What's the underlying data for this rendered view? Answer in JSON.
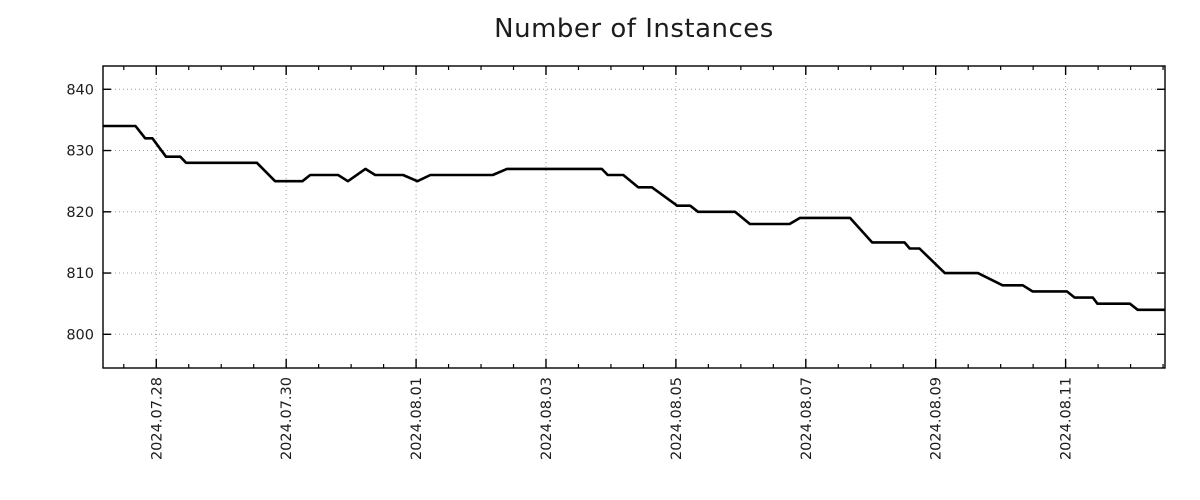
{
  "chart_data": {
    "type": "line",
    "title": "Number of Instances",
    "x_axis": {
      "tick_labels": [
        "2024.07.28",
        "2024.07.30",
        "2024.08.01",
        "2024.08.03",
        "2024.08.05",
        "2024.08.07",
        "2024.08.09",
        "2024.08.11"
      ],
      "major_tick_positions_days": [
        0,
        2,
        4,
        6,
        8,
        10,
        12,
        14
      ],
      "minor_tick_step_days": 0.5,
      "xlim_days": [
        -0.82,
        15.53
      ],
      "day_zero": "2024.07.28"
    },
    "y_axis": {
      "ticks": [
        800,
        810,
        820,
        830,
        840
      ],
      "ylim": [
        794.5,
        843.8
      ]
    },
    "grid": {
      "color": "#9e9e9e",
      "style": "dotted",
      "on": true
    },
    "frame_color": "#000000",
    "label_color": "#1c1c1c",
    "title_color": "#1c1c1c",
    "series": [
      {
        "name": "Number of Instances",
        "color": "#000000",
        "width": 2.6,
        "points_day_value": [
          [
            -0.82,
            834
          ],
          [
            -0.32,
            834
          ],
          [
            -0.17,
            832
          ],
          [
            -0.06,
            832
          ],
          [
            0.15,
            829
          ],
          [
            0.37,
            829
          ],
          [
            0.46,
            828
          ],
          [
            1.55,
            828
          ],
          [
            1.83,
            825
          ],
          [
            2.25,
            825
          ],
          [
            2.37,
            826
          ],
          [
            2.8,
            826
          ],
          [
            2.95,
            825
          ],
          [
            3.22,
            827
          ],
          [
            3.37,
            826
          ],
          [
            3.8,
            826
          ],
          [
            4.02,
            825
          ],
          [
            4.22,
            826
          ],
          [
            5.18,
            826
          ],
          [
            5.4,
            827
          ],
          [
            6.86,
            827
          ],
          [
            6.95,
            826
          ],
          [
            7.19,
            826
          ],
          [
            7.42,
            824
          ],
          [
            7.63,
            824
          ],
          [
            8.02,
            821
          ],
          [
            8.22,
            821
          ],
          [
            8.34,
            820
          ],
          [
            8.91,
            820
          ],
          [
            9.14,
            818
          ],
          [
            9.75,
            818
          ],
          [
            9.91,
            819
          ],
          [
            10.68,
            819
          ],
          [
            11.02,
            815
          ],
          [
            11.52,
            815
          ],
          [
            11.6,
            814
          ],
          [
            11.75,
            814
          ],
          [
            12.14,
            810
          ],
          [
            12.65,
            810
          ],
          [
            13.03,
            808
          ],
          [
            13.34,
            808
          ],
          [
            13.49,
            807
          ],
          [
            14.02,
            807
          ],
          [
            14.14,
            806
          ],
          [
            14.42,
            806
          ],
          [
            14.49,
            805
          ],
          [
            14.99,
            805
          ],
          [
            15.11,
            804
          ],
          [
            15.53,
            804
          ]
        ]
      }
    ]
  }
}
